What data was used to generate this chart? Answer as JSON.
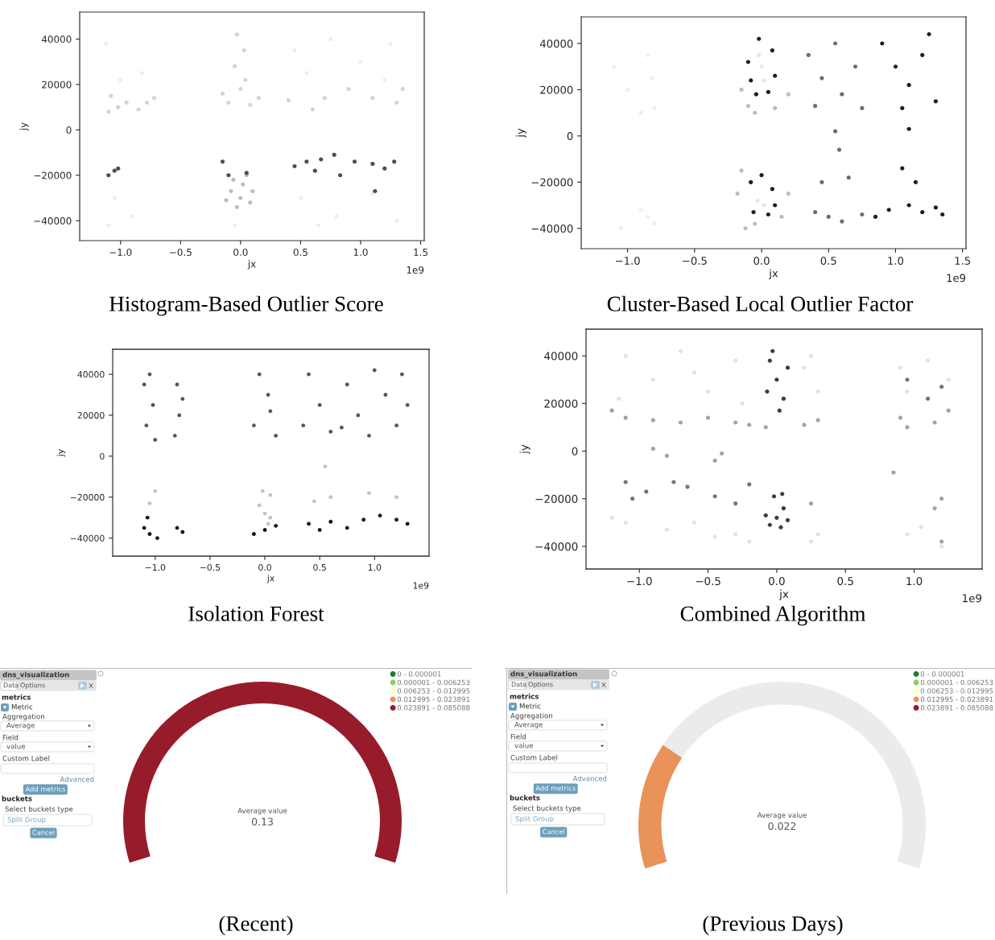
{
  "chart_data": [
    {
      "type": "scatter",
      "title": "Histogram-Based Outlier Score",
      "xlabel": "jx",
      "ylabel": "jy",
      "marker": "circle",
      "xlim": [
        -1.34,
        1.53
      ],
      "ylim": [
        -48800,
        51900
      ],
      "xticks": [
        {
          "value": -1,
          "label": "−1.0"
        },
        {
          "value": -0.5,
          "label": "−0.5"
        },
        {
          "value": 0,
          "label": "0.0"
        },
        {
          "value": 0.5,
          "label": "0.5"
        },
        {
          "value": 1,
          "label": "1.0"
        },
        {
          "value": 1.5,
          "label": "1.5"
        }
      ],
      "yticks": [
        -40000,
        -20000,
        0,
        20000,
        40000
      ],
      "annotations": [
        "1e9"
      ],
      "series": [
        {
          "color": "#eeeeee",
          "x": [
            -1.12,
            -1.0,
            -0.82,
            0.55,
            0.75,
            1.0,
            1.2,
            0.45,
            1.25,
            -1.05,
            -0.9,
            -1.1,
            0.5,
            0.8,
            1.1,
            1.3,
            0.65,
            -0.05
          ],
          "values": [
            38000,
            22000,
            25000,
            25000,
            40000,
            30000,
            22000,
            35000,
            38000,
            -30000,
            -38000,
            -42000,
            -30000,
            -38000,
            -28000,
            -40000,
            -42000,
            -42000
          ]
        },
        {
          "color": "#d4d4d4",
          "x": [
            -1.08,
            -1.02,
            -1.1,
            -0.95,
            -0.78,
            -0.85,
            -0.72,
            -0.03,
            0.03,
            -0.05,
            0.04,
            0.0,
            -0.1,
            0.08,
            0.15,
            -0.15,
            0.4,
            0.7,
            1.1,
            1.3,
            0.9,
            0.6,
            1.35
          ],
          "values": [
            15000,
            10000,
            8000,
            12000,
            12000,
            9000,
            14000,
            42000,
            35000,
            28000,
            22000,
            18000,
            12000,
            11000,
            14000,
            16000,
            13000,
            14000,
            14000,
            12000,
            18000,
            9000,
            18000
          ]
        },
        {
          "color": "#bcbcbc",
          "x": [
            0.0,
            -0.08,
            0.08,
            0.02,
            -0.03,
            0.1,
            -0.12,
            0.05,
            -0.06
          ],
          "values": [
            -30000,
            -27000,
            -32000,
            -24000,
            -34000,
            -27000,
            -31000,
            -20000,
            -22000
          ]
        },
        {
          "color": "#4d4d4d",
          "x": [
            -1.05,
            -1.02,
            -1.1,
            -0.1,
            0.05,
            -0.15,
            0.45,
            0.55,
            0.67,
            0.78,
            0.95,
            1.1,
            1.2,
            1.28,
            1.12,
            0.83,
            0.62
          ],
          "values": [
            -18000,
            -17000,
            -20000,
            -20000,
            -19000,
            -14000,
            -16000,
            -14000,
            -13000,
            -11000,
            -14000,
            -15000,
            -17000,
            -14000,
            -27000,
            -20000,
            -18000
          ]
        }
      ]
    },
    {
      "type": "scatter",
      "title": "Cluster-Based Local Outlier Factor",
      "xlabel": "jx",
      "ylabel": "jy",
      "marker": "circle",
      "xlim": [
        -1.346,
        1.526
      ],
      "ylim": [
        -48800,
        51500
      ],
      "xticks": [
        {
          "value": -1,
          "label": "−1.0"
        },
        {
          "value": -0.5,
          "label": "−0.5"
        },
        {
          "value": 0,
          "label": "0.0"
        },
        {
          "value": 0.5,
          "label": "0.5"
        },
        {
          "value": 1,
          "label": "1.0"
        },
        {
          "value": 1.5,
          "label": "1.5"
        }
      ],
      "yticks": [
        -40000,
        -20000,
        0,
        20000,
        40000
      ],
      "annotations": [
        "1e9"
      ],
      "series": [
        {
          "color": "#eeeeee",
          "x": [
            -1.1,
            -0.85,
            -0.82,
            -0.8,
            -0.9,
            -1.0,
            -0.85,
            -0.8,
            -1.05,
            -0.9
          ],
          "values": [
            30000,
            35000,
            25000,
            12000,
            10000,
            20000,
            -35000,
            -38000,
            -40000,
            -32000
          ]
        },
        {
          "color": "#bdbdbd",
          "x": [
            -0.1,
            -0.05,
            -0.15,
            0.1,
            0.2,
            -0.12,
            -0.05,
            0.15,
            -0.18,
            0.2,
            -0.15
          ],
          "values": [
            13000,
            10000,
            20000,
            12000,
            18000,
            -40000,
            -38000,
            -35000,
            -25000,
            -25000,
            -15000
          ]
        },
        {
          "color": "#e6e6e6",
          "x": [
            0.0,
            -0.02,
            0.02,
            -0.03,
            0.02
          ],
          "values": [
            30000,
            35000,
            24000,
            -28000,
            -30000
          ]
        },
        {
          "color": "#6e6e6e",
          "x": [
            0.35,
            0.45,
            0.4,
            0.55,
            0.6,
            0.7,
            0.75,
            0.5,
            0.4,
            0.6,
            0.75,
            0.45,
            0.65,
            0.55,
            0.58
          ],
          "values": [
            35000,
            25000,
            13000,
            40000,
            18000,
            30000,
            12000,
            -35000,
            -33000,
            -37000,
            -34000,
            -20000,
            -18000,
            2000,
            -6000
          ]
        },
        {
          "color": "#1e1e1e",
          "x": [
            -0.1,
            -0.08,
            -0.04,
            0.05,
            0.1,
            0.08,
            -0.02,
            -0.08,
            0.0,
            0.08,
            -0.06,
            0.05,
            0.1,
            0.9,
            1.0,
            1.1,
            1.2,
            1.3,
            1.25,
            1.05,
            0.95,
            1.1,
            1.2,
            1.3,
            1.15,
            1.05,
            0.85,
            1.35,
            1.1
          ],
          "values": [
            32000,
            24000,
            18000,
            19000,
            26000,
            37000,
            42000,
            -20000,
            -17000,
            -23000,
            -33000,
            -34000,
            -30000,
            40000,
            30000,
            22000,
            35000,
            15000,
            44000,
            12000,
            -32000,
            -30000,
            -33000,
            -31000,
            -20000,
            -14000,
            -35000,
            -34000,
            3000
          ]
        }
      ]
    },
    {
      "type": "scatter",
      "title": "Isolation Forest",
      "xlabel": "jx",
      "ylabel": "jy",
      "marker": "circle",
      "xlim": [
        -1.387,
        1.497
      ],
      "ylim": [
        -48800,
        52200
      ],
      "xticks": [
        {
          "value": -1,
          "label": "−1.0"
        },
        {
          "value": -0.5,
          "label": "−0.5"
        },
        {
          "value": 0,
          "label": "0.0"
        },
        {
          "value": 0.5,
          "label": "0.5"
        },
        {
          "value": 1,
          "label": "1.0"
        }
      ],
      "yticks": [
        -40000,
        -20000,
        0,
        20000,
        40000
      ],
      "annotations": [
        "1e9"
      ],
      "series": [
        {
          "color": "#575757",
          "x": [
            -1.1,
            -1.02,
            -1.08,
            -1.0,
            -1.05,
            -0.8,
            -0.78,
            -0.82,
            -0.05,
            0.03,
            -0.1,
            0.1,
            0.05,
            0.4,
            0.5,
            0.6,
            0.75,
            0.85,
            1.0,
            1.1,
            1.2,
            1.3,
            0.35,
            1.25,
            0.7,
            -0.75,
            0.95
          ],
          "values": [
            35000,
            25000,
            15000,
            8000,
            40000,
            35000,
            20000,
            10000,
            40000,
            30000,
            15000,
            10000,
            22000,
            40000,
            25000,
            12000,
            35000,
            20000,
            42000,
            30000,
            15000,
            25000,
            15000,
            40000,
            14000,
            28000,
            10000
          ]
        },
        {
          "color": "#141414",
          "x": [
            -1.05,
            -1.1,
            -0.98,
            -0.8,
            -0.75,
            -0.1,
            0.0,
            0.1,
            0.4,
            0.5,
            0.6,
            0.75,
            0.9,
            1.05,
            1.2,
            1.3,
            -1.07
          ],
          "values": [
            -38000,
            -35000,
            -40000,
            -35000,
            -37000,
            -38000,
            -36000,
            -34000,
            -33000,
            -36000,
            -32000,
            -35000,
            -31000,
            -29000,
            -31000,
            -33000,
            -30000
          ]
        },
        {
          "color": "#c4c4c4",
          "x": [
            0.0,
            -0.05,
            0.05,
            -1.05,
            -0.02,
            0.05,
            1.2,
            0.6,
            0.95,
            0.45,
            0.55,
            -1.0,
            0.03
          ],
          "values": [
            -28000,
            -24000,
            -30000,
            -23000,
            -17000,
            -19000,
            -20000,
            -20000,
            -18000,
            -22000,
            -5000,
            -17000,
            -33000
          ]
        }
      ]
    },
    {
      "type": "scatter",
      "title": "Combined Algorithm",
      "xlabel": "jx",
      "ylabel": "jy",
      "marker": "circle",
      "xlim": [
        -1.388,
        1.495
      ],
      "ylim": [
        -49500,
        51200
      ],
      "xticks": [
        {
          "value": -1,
          "label": "−1.0"
        },
        {
          "value": -0.5,
          "label": "−0.5"
        },
        {
          "value": 0,
          "label": "0.0"
        },
        {
          "value": 0.5,
          "label": "0.5"
        },
        {
          "value": 1,
          "label": "1.0"
        }
      ],
      "yticks": [
        -40000,
        -20000,
        0,
        20000,
        40000
      ],
      "annotations": [
        "1e9"
      ],
      "series": [
        {
          "color": "#e2e2e2",
          "x": [
            -1.1,
            -0.9,
            -0.7,
            -0.5,
            -0.3,
            -1.15,
            -0.6,
            -0.25,
            0.2,
            0.3,
            0.25,
            0.9,
            1.1,
            1.25,
            0.95,
            -1.1,
            -0.8,
            -0.6,
            -0.45,
            -0.3,
            0.25,
            0.3,
            0.95,
            1.2,
            1.05,
            -1.2,
            -0.2
          ],
          "values": [
            40000,
            30000,
            42000,
            25000,
            38000,
            22000,
            33000,
            20000,
            35000,
            25000,
            40000,
            35000,
            38000,
            30000,
            25000,
            -30000,
            -33000,
            -30000,
            -36000,
            -35000,
            -38000,
            -35000,
            -35000,
            -40000,
            -32000,
            -28000,
            -38000
          ]
        },
        {
          "color": "#a3a3a3",
          "x": [
            -1.1,
            -0.9,
            -0.7,
            -0.5,
            -0.3,
            -0.2,
            -1.2,
            -0.08,
            0.2,
            0.3,
            0.95,
            0.9,
            1.15,
            1.25,
            0.25,
            1.15,
            1.2,
            -0.8,
            -0.45,
            -0.4,
            -0.9,
            0.85,
            1.2
          ],
          "values": [
            14000,
            13000,
            12000,
            14000,
            12000,
            11000,
            17000,
            10000,
            11000,
            13000,
            10000,
            14000,
            12000,
            17000,
            -22000,
            -24000,
            -20000,
            -2000,
            -4000,
            -1000,
            1000,
            -9000,
            -38000
          ]
        },
        {
          "color": "#747474",
          "x": [
            -1.05,
            -0.95,
            -1.1,
            -0.65,
            -0.45,
            -0.3,
            -0.75,
            -0.2,
            1.1,
            0.95,
            1.2
          ],
          "values": [
            -20000,
            -17000,
            -13000,
            -15000,
            -19000,
            -22000,
            -13000,
            -14000,
            22000,
            30000,
            27000
          ]
        },
        {
          "color": "#3c3c3c",
          "x": [
            -0.05,
            0.0,
            0.05,
            -0.07,
            0.08,
            0.02,
            -0.03,
            0.0,
            -0.08,
            0.08,
            0.03,
            -0.05,
            0.05,
            -0.02,
            0.04
          ],
          "values": [
            38000,
            30000,
            22000,
            25000,
            35000,
            17000,
            42000,
            -28000,
            -27000,
            -29000,
            -32000,
            -31000,
            -24000,
            -19000,
            -18000
          ]
        }
      ]
    },
    {
      "type": "other",
      "annotations": [
        "dns_visualization",
        "Data",
        "Options",
        "metrics",
        "Metric",
        "Aggregation",
        "Average",
        "Field",
        "value",
        "Custom Label",
        "Advanced",
        "Add metrics",
        "buckets",
        "Select buckets type",
        "Split Group",
        "Cancel"
      ]
    },
    {
      "type": "pie",
      "title": "(Recent)",
      "legend": "top right",
      "annotations": [
        "Average value",
        "0.13"
      ],
      "categories": [
        "0 - 0.000001",
        "0.000001 - 0.006253",
        "0.006253 - 0.012995",
        "0.012995 - 0.023891",
        "0.023891 - 0.085088",
        null
      ],
      "values": [
        0,
        0,
        0,
        0,
        100,
        0
      ],
      "colors": [
        "#1e7b3c",
        "#91cf60",
        "#ffffbf",
        "#ec935c",
        "#971c2b",
        "#ebebeb"
      ]
    },
    {
      "type": "other",
      "annotations": [
        "dns_visualization",
        "Data",
        "Options",
        "metrics",
        "Metric",
        "Aggregation",
        "Average",
        "Field",
        "value",
        "Custom Label",
        "Advanced",
        "Add metrics",
        "buckets",
        "Select buckets type",
        "Split Group",
        "Cancel"
      ]
    },
    {
      "type": "donut",
      "title": "(Previous Days)",
      "legend": "top right",
      "annotations": [
        "Average value",
        "0.022"
      ],
      "categories": [
        "0 - 0.000001",
        "0.000001 - 0.006253",
        "0.006253 - 0.012995",
        "0.012995 - 0.023891",
        "0.023891 - 0.085088",
        null
      ],
      "values": [
        0,
        0,
        0,
        24,
        0,
        76
      ],
      "colors": [
        "#1e7b3c",
        "#91cf60",
        "#ffffbf",
        "#e9925a",
        "#971c2b",
        "#ebebeb"
      ]
    }
  ]
}
